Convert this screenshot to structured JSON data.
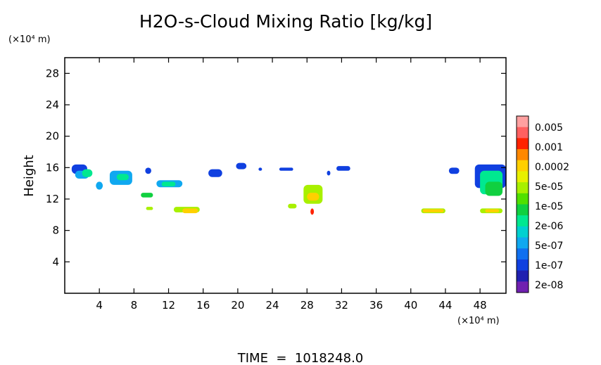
{
  "chart_data": {
    "type": "heatmap",
    "title": "H2O-s-Cloud Mixing Ratio [kg/kg]",
    "ylabel": "Height",
    "x_unit": "(×10⁴ m)",
    "y_unit": "(×10⁴ m)",
    "xlim": [
      0,
      51
    ],
    "ylim": [
      0,
      30
    ],
    "x_ticks": [
      4,
      8,
      12,
      16,
      20,
      24,
      28,
      32,
      36,
      40,
      44,
      48
    ],
    "y_ticks": [
      4,
      8,
      12,
      16,
      20,
      24,
      28
    ],
    "grid": false,
    "footer": "TIME  =  1018248.0",
    "colorbar": {
      "labels": [
        "0.005",
        "0.001",
        "0.0002",
        "5e-05",
        "1e-05",
        "2e-06",
        "5e-07",
        "1e-07",
        "2e-08"
      ],
      "colors": [
        "#ffa0a0",
        "#ff6060",
        "#ff2200",
        "#ff8800",
        "#ffd000",
        "#e8f000",
        "#a8f000",
        "#50e000",
        "#10d040",
        "#00e890",
        "#00d0d0",
        "#10a8f0",
        "#1070f0",
        "#1040e0",
        "#2020b0",
        "#7020b0"
      ]
    },
    "regions": [
      {
        "x": [
          0.8,
          2.6
        ],
        "y": [
          15.2,
          16.4
        ],
        "level": "1e-07"
      },
      {
        "x": [
          1.2,
          2.8
        ],
        "y": [
          14.6,
          15.6
        ],
        "level": "5e-07"
      },
      {
        "x": [
          2.0,
          3.2
        ],
        "y": [
          14.8,
          15.8
        ],
        "level": "2e-06"
      },
      {
        "x": [
          5.2,
          7.8
        ],
        "y": [
          13.8,
          15.6
        ],
        "level": "5e-07"
      },
      {
        "x": [
          6.0,
          7.4
        ],
        "y": [
          14.4,
          15.2
        ],
        "level": "2e-06"
      },
      {
        "x": [
          3.6,
          4.4
        ],
        "y": [
          13.2,
          14.2
        ],
        "level": "5e-07"
      },
      {
        "x": [
          9.3,
          10.0
        ],
        "y": [
          15.2,
          16.0
        ],
        "level": "1e-07"
      },
      {
        "x": [
          10.6,
          13.6
        ],
        "y": [
          13.5,
          14.4
        ],
        "level": "5e-07"
      },
      {
        "x": [
          11.2,
          12.8
        ],
        "y": [
          13.6,
          14.2
        ],
        "level": "2e-06"
      },
      {
        "x": [
          8.8,
          10.2
        ],
        "y": [
          12.2,
          12.8
        ],
        "level": "1e-05"
      },
      {
        "x": [
          9.4,
          10.2
        ],
        "y": [
          10.6,
          11.0
        ],
        "level": "5e-05"
      },
      {
        "x": [
          12.6,
          15.6
        ],
        "y": [
          10.3,
          11.0
        ],
        "level": "5e-05"
      },
      {
        "x": [
          13.6,
          15.4
        ],
        "y": [
          10.2,
          10.8
        ],
        "level": "0.0002"
      },
      {
        "x": [
          16.6,
          18.2
        ],
        "y": [
          14.8,
          15.8
        ],
        "level": "1e-07"
      },
      {
        "x": [
          19.8,
          21.0
        ],
        "y": [
          15.8,
          16.6
        ],
        "level": "1e-07"
      },
      {
        "x": [
          22.4,
          22.8
        ],
        "y": [
          15.6,
          16.0
        ],
        "level": "1e-07"
      },
      {
        "x": [
          24.8,
          26.4
        ],
        "y": [
          15.6,
          16.0
        ],
        "level": "1e-07"
      },
      {
        "x": [
          25.8,
          26.8
        ],
        "y": [
          10.8,
          11.4
        ],
        "level": "5e-05"
      },
      {
        "x": [
          27.6,
          29.8
        ],
        "y": [
          11.4,
          13.8
        ],
        "level": "5e-05"
      },
      {
        "x": [
          28.0,
          29.4
        ],
        "y": [
          11.8,
          12.8
        ],
        "level": "0.0002"
      },
      {
        "x": [
          28.4,
          28.8
        ],
        "y": [
          10.0,
          10.8
        ],
        "level": "0.001"
      },
      {
        "x": [
          30.3,
          30.7
        ],
        "y": [
          15.0,
          15.6
        ],
        "level": "1e-07"
      },
      {
        "x": [
          31.4,
          33.0
        ],
        "y": [
          15.6,
          16.2
        ],
        "level": "1e-07"
      },
      {
        "x": [
          41.2,
          44.0
        ],
        "y": [
          10.2,
          10.8
        ],
        "level": "5e-05"
      },
      {
        "x": [
          41.4,
          43.8
        ],
        "y": [
          10.3,
          10.7
        ],
        "level": "0.0002"
      },
      {
        "x": [
          44.4,
          45.6
        ],
        "y": [
          15.2,
          16.0
        ],
        "level": "1e-07"
      },
      {
        "x": [
          47.4,
          51.0
        ],
        "y": [
          13.4,
          16.4
        ],
        "level": "1e-07"
      },
      {
        "x": [
          48.0,
          50.6
        ],
        "y": [
          12.6,
          15.6
        ],
        "level": "2e-06"
      },
      {
        "x": [
          48.6,
          50.6
        ],
        "y": [
          12.4,
          14.2
        ],
        "level": "1e-05"
      },
      {
        "x": [
          48.0,
          50.6
        ],
        "y": [
          10.2,
          10.8
        ],
        "level": "5e-05"
      },
      {
        "x": [
          48.6,
          50.2
        ],
        "y": [
          10.3,
          10.7
        ],
        "level": "0.0002"
      }
    ]
  }
}
